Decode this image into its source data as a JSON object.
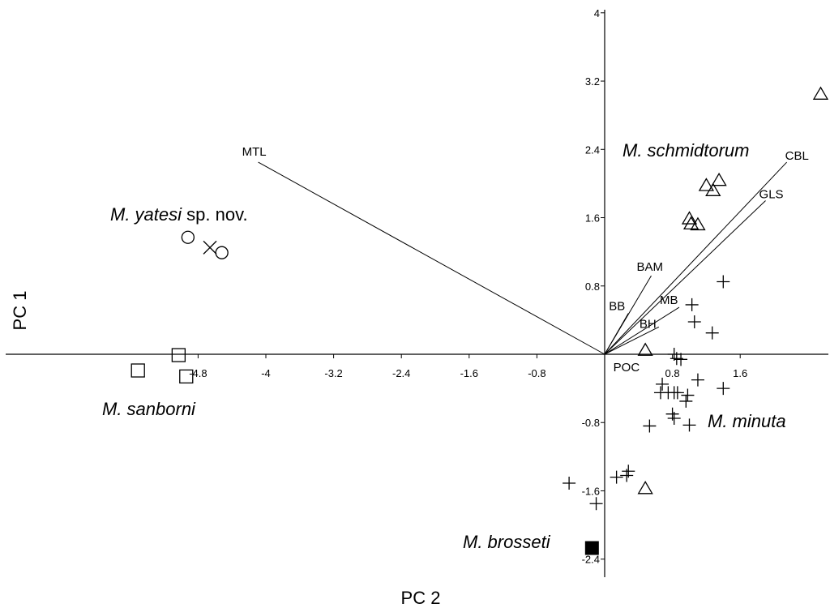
{
  "chart_data": {
    "type": "scatter",
    "xlabel": "PC 2",
    "ylabel": "PC 1",
    "xlim": [
      -5.2,
      2.6
    ],
    "ylim": [
      -2.6,
      4.2
    ],
    "x_ticks": [
      "-4.8",
      "-4",
      "-3.2",
      "-2.4",
      "-1.6",
      "-0.8",
      "0.8",
      "1.6"
    ],
    "y_ticks": [
      "4",
      "3.2",
      "2.4",
      "1.6",
      "0.8",
      "-0.8",
      "-1.6",
      "-2.4"
    ],
    "grid": false,
    "series": [
      {
        "name": "M. yatesi sp. nov.",
        "marker": "circle",
        "points": [
          [
            -4.92,
            1.37
          ],
          [
            -4.52,
            1.19
          ]
        ]
      },
      {
        "name": "M. yatesi sp. nov.",
        "marker": "x",
        "points": [
          [
            -4.66,
            1.25
          ]
        ]
      },
      {
        "name": "M. sanborni",
        "marker": "square",
        "points": [
          [
            -5.51,
            -0.19
          ],
          [
            -5.03,
            -0.01
          ],
          [
            -4.94,
            -0.26
          ]
        ]
      },
      {
        "name": "M. brosseti",
        "marker": "square-filled",
        "points": [
          [
            -0.15,
            -2.27
          ]
        ]
      },
      {
        "name": "M. schmidtorum",
        "marker": "triangle",
        "points": [
          [
            2.55,
            3.05
          ],
          [
            1.2,
            1.98
          ],
          [
            1.35,
            2.04
          ],
          [
            1.28,
            1.92
          ],
          [
            1.0,
            1.59
          ],
          [
            1.02,
            1.53
          ],
          [
            1.1,
            1.52
          ],
          [
            0.48,
            0.05
          ],
          [
            0.48,
            -1.57
          ]
        ]
      },
      {
        "name": "M. minuta",
        "marker": "plus",
        "points": [
          [
            1.4,
            0.85
          ],
          [
            1.03,
            0.58
          ],
          [
            1.06,
            0.38
          ],
          [
            1.27,
            0.25
          ],
          [
            0.82,
            0.0
          ],
          [
            0.9,
            -0.06
          ],
          [
            0.85,
            -0.05
          ],
          [
            1.1,
            -0.3
          ],
          [
            1.4,
            -0.4
          ],
          [
            0.68,
            -0.35
          ],
          [
            0.66,
            -0.45
          ],
          [
            0.75,
            -0.45
          ],
          [
            0.82,
            -0.45
          ],
          [
            0.86,
            -0.45
          ],
          [
            0.98,
            -0.48
          ],
          [
            0.96,
            -0.55
          ],
          [
            0.8,
            -0.7
          ],
          [
            0.82,
            -0.75
          ],
          [
            1.0,
            -0.83
          ],
          [
            0.53,
            -0.84
          ],
          [
            0.28,
            -1.37
          ],
          [
            0.26,
            -1.42
          ],
          [
            0.14,
            -1.44
          ],
          [
            -0.42,
            -1.51
          ],
          [
            -0.1,
            -1.75
          ]
        ]
      }
    ],
    "vectors": [
      {
        "label": "MTL",
        "x": -4.09,
        "y": 2.25
      },
      {
        "label": "CBL",
        "x": 2.15,
        "y": 2.25
      },
      {
        "label": "GLS",
        "x": 1.9,
        "y": 1.8
      },
      {
        "label": "BAM",
        "x": 0.55,
        "y": 0.92
      },
      {
        "label": "BB",
        "x": 0.28,
        "y": 0.48
      },
      {
        "label": "MB",
        "x": 0.88,
        "y": 0.55
      },
      {
        "label": "BH",
        "x": 0.64,
        "y": 0.32
      },
      {
        "label": "POC",
        "x": 0.37,
        "y": 0.0
      }
    ],
    "group_labels": [
      {
        "italic": "M. yatesi",
        "roman": " sp. nov."
      },
      {
        "italic": "M. schmidtorum",
        "roman": ""
      },
      {
        "italic": "M. sanborni",
        "roman": ""
      },
      {
        "italic": "M. minuta",
        "roman": ""
      },
      {
        "italic": "M. brosseti",
        "roman": ""
      }
    ]
  }
}
